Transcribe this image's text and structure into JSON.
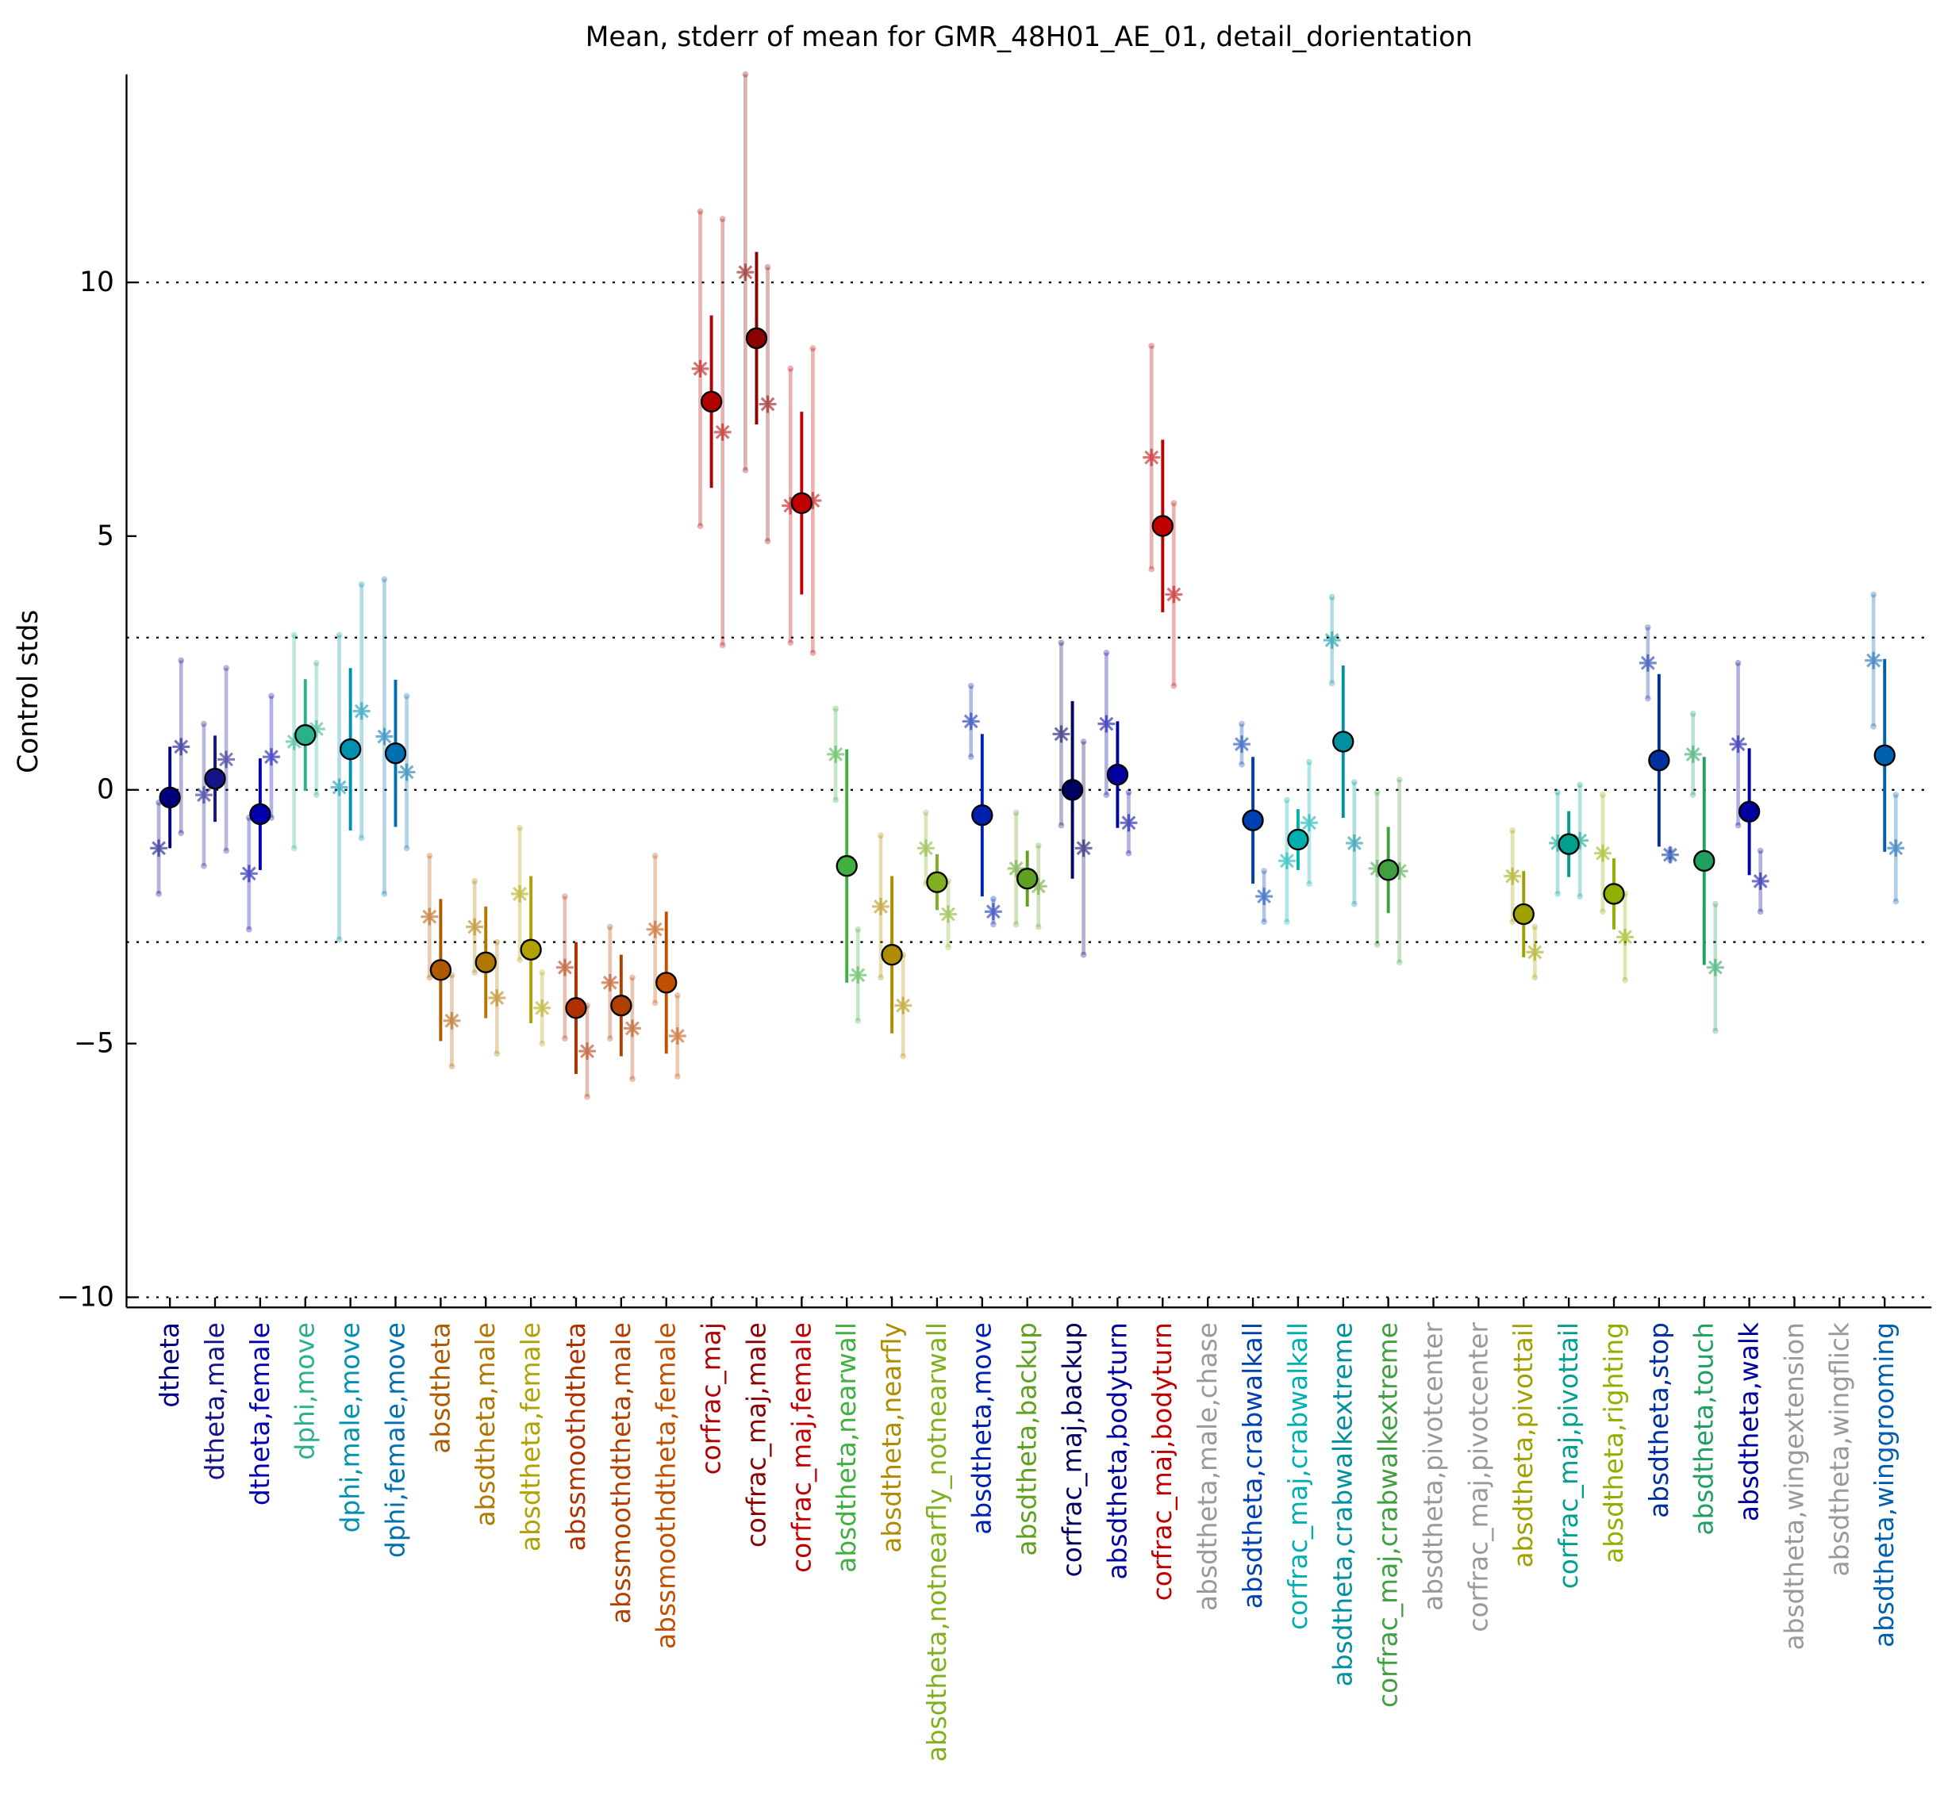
{
  "chart_data": {
    "type": "errorbar",
    "title": "Mean, stderr of mean for GMR_48H01_AE_01, detail_dorientation",
    "y_label": "Control stds",
    "categories": [
      "dtheta",
      "dtheta,male",
      "dtheta,female",
      "dphi,move",
      "dphi,male,move",
      "dphi,female,move",
      "absdtheta",
      "absdtheta,male",
      "absdtheta,female",
      "abssmoothdtheta",
      "abssmoothdtheta,male",
      "abssmoothdtheta,female",
      "corfrac_maj",
      "corfrac_maj,male",
      "corfrac_maj,female",
      "absdtheta,nearwall",
      "absdtheta,nearfly",
      "absdtheta,notnearfly_notnearwall",
      "absdtheta,move",
      "absdtheta,backup",
      "corfrac_maj,backup",
      "absdtheta,bodyturn",
      "corfrac_maj,bodyturn",
      "absdtheta,male,chase",
      "absdtheta,crabwalkall",
      "corfrac_maj,crabwalkall",
      "absdtheta,crabwalkextreme",
      "corfrac_maj,crabwalkextreme",
      "absdtheta,pivotcenter",
      "corfrac_maj,pivotcenter",
      "absdtheta,pivottail",
      "corfrac_maj,pivottail",
      "absdtheta,righting",
      "absdtheta,stop",
      "absdtheta,touch",
      "absdtheta,walk",
      "absdtheta,wingextension",
      "absdtheta,wingflick",
      "absdtheta,winggrooming"
    ],
    "colors": [
      "#000080",
      "#141488",
      "#0000b0",
      "#2ab08a",
      "#0090b0",
      "#0070b0",
      "#b05a00",
      "#b07800",
      "#b0a000",
      "#b03000",
      "#b04000",
      "#c05000",
      "#b00000",
      "#8b0000",
      "#c00000",
      "#40b040",
      "#b08c00",
      "#80b020",
      "#0020b0",
      "#60a020",
      "#000060",
      "#0000a0",
      "#c00000",
      "#999999",
      "#0040b0",
      "#00b0b0",
      "#0090a0",
      "#40a040",
      "#999999",
      "#999999",
      "#a0a000",
      "#00a090",
      "#90b000",
      "#0030a0",
      "#20a060",
      "#0000a0",
      "#999999",
      "#999999",
      "#0060b0"
    ],
    "values": [
      -0.15,
      0.22,
      -0.48,
      1.08,
      0.8,
      0.72,
      -3.55,
      -3.4,
      -3.15,
      -4.3,
      -4.25,
      -3.8,
      7.65,
      8.9,
      5.65,
      -1.5,
      -3.25,
      -1.82,
      -0.5,
      -1.75,
      0,
      0.3,
      5.2,
      null,
      -0.6,
      -0.98,
      0.95,
      -1.58,
      null,
      null,
      -2.45,
      -1.07,
      -2.05,
      0.58,
      -1.4,
      -0.43,
      null,
      null,
      0.68
    ],
    "errors": [
      1.0,
      0.85,
      1.1,
      1.1,
      1.6,
      1.45,
      1.4,
      1.1,
      1.45,
      1.3,
      1.0,
      1.4,
      1.7,
      1.7,
      1.8,
      2.3,
      1.55,
      0.55,
      1.6,
      0.55,
      1.75,
      1.05,
      1.7,
      null,
      1.25,
      0.6,
      1.5,
      0.85,
      null,
      null,
      0.85,
      0.65,
      0.7,
      1.7,
      2.05,
      1.25,
      null,
      null,
      1.9
    ],
    "left_values": [
      -1.15,
      -0.1,
      -1.65,
      0.95,
      0.05,
      1.05,
      -2.5,
      -2.7,
      -2.05,
      -3.5,
      -3.8,
      -2.75,
      8.3,
      10.2,
      5.6,
      0.7,
      -2.3,
      -1.15,
      1.35,
      -1.55,
      1.1,
      1.3,
      6.55,
      null,
      0.9,
      -1.4,
      2.95,
      -1.55,
      null,
      null,
      -1.7,
      -1.05,
      -1.25,
      2.5,
      0.7,
      0.9,
      null,
      null,
      2.55
    ],
    "left_spread": [
      0.9,
      1.4,
      1.1,
      2.1,
      3.0,
      3.1,
      1.2,
      0.9,
      1.3,
      1.4,
      1.1,
      1.45,
      3.1,
      3.9,
      2.7,
      0.9,
      1.4,
      0.7,
      0.7,
      1.1,
      1.8,
      1.4,
      2.2,
      null,
      0.4,
      1.2,
      0.85,
      1.5,
      null,
      null,
      0.9,
      1.0,
      1.15,
      0.7,
      0.8,
      1.6,
      null,
      null,
      1.3
    ],
    "right_values": [
      0.85,
      0.6,
      0.65,
      1.2,
      1.55,
      0.35,
      -4.55,
      -4.1,
      -4.3,
      -5.15,
      -4.7,
      -4.85,
      7.05,
      7.6,
      5.7,
      -3.65,
      -4.25,
      -2.45,
      -2.4,
      -1.9,
      -1.15,
      -0.65,
      3.85,
      null,
      -2.1,
      -0.65,
      -1.05,
      -1.6,
      null,
      null,
      -3.2,
      -1.0,
      -2.9,
      -1.28,
      -3.5,
      -1.8,
      null,
      null,
      -1.15
    ],
    "right_spread": [
      1.7,
      1.8,
      1.2,
      1.3,
      2.5,
      1.5,
      0.9,
      1.1,
      0.7,
      0.9,
      1.0,
      0.8,
      4.2,
      2.7,
      3.0,
      0.9,
      1.0,
      0.65,
      0.25,
      0.8,
      2.1,
      0.6,
      1.8,
      null,
      0.5,
      1.2,
      1.2,
      1.8,
      null,
      null,
      0.5,
      1.1,
      0.85,
      0.1,
      1.25,
      0.6,
      null,
      null,
      1.05
    ],
    "ylim": [
      -10.2,
      14.1
    ],
    "yticks": [
      {
        "value": -10,
        "label": "−10"
      },
      {
        "value": -5,
        "label": "−5"
      },
      0,
      5,
      10
    ],
    "hlines": [
      10,
      3,
      0,
      -3,
      -10
    ]
  }
}
